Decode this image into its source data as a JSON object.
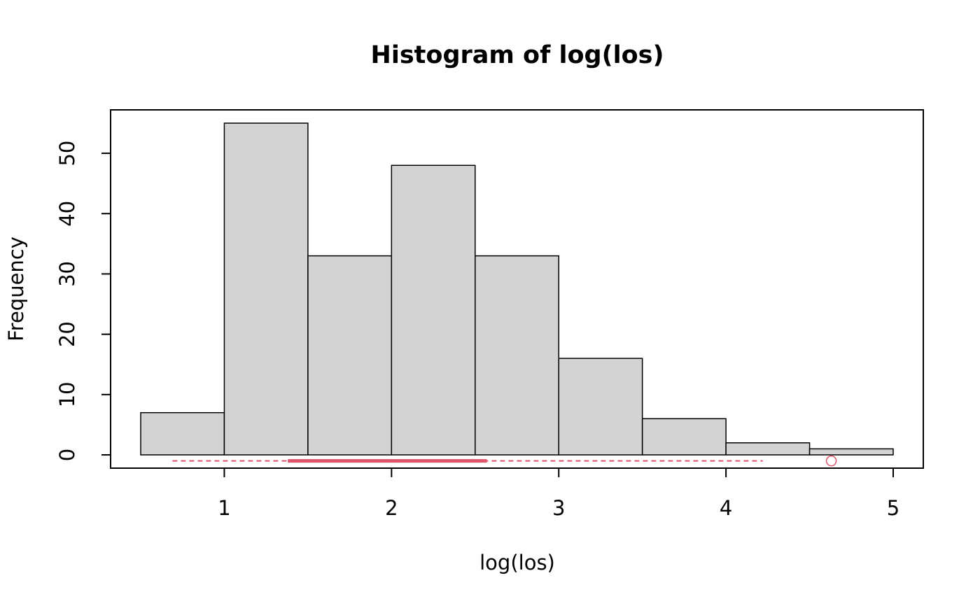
{
  "chart_data": {
    "type": "histogram",
    "title": "Histogram of log(los)",
    "x_label": "log(los)",
    "y_label": "Frequency",
    "bins": [
      0.5,
      1.0,
      1.5,
      2.0,
      2.5,
      3.0,
      3.5,
      4.0,
      4.5,
      5.0
    ],
    "values": [
      7,
      55,
      33,
      48,
      33,
      16,
      6,
      2,
      1
    ],
    "color": "#d3d3d3",
    "xlim": [
      0.32,
      5.18
    ],
    "xticks": [
      1,
      2,
      3,
      4,
      5
    ],
    "ylim": [
      -2.2,
      57.2
    ],
    "yticks": [
      0,
      10,
      20,
      30,
      40,
      50
    ],
    "boxplot": {
      "y": -1,
      "whisker_low": 0.69,
      "q1": 1.38,
      "q3": 2.57,
      "whisker_high": 4.22,
      "outliers": [
        4.63
      ],
      "color": "#df536b"
    }
  }
}
